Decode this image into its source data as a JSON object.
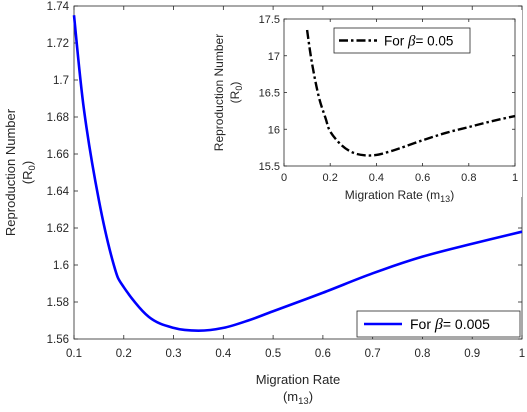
{
  "chart_data": [
    {
      "type": "line",
      "xlabel_line1": "Migration Rate",
      "xlabel_line2": "(m",
      "xlabel_sub": "13",
      "xlabel_close": ")",
      "ylabel_line1": "Reproduction Number",
      "ylabel_line2": "(R",
      "ylabel_sub": "0",
      "ylabel_close": ")",
      "xlim": [
        0.1,
        1.0
      ],
      "ylim": [
        1.56,
        1.74
      ],
      "xticks": [
        "0.1",
        "0.2",
        "0.3",
        "0.4",
        "0.5",
        "0.6",
        "0.7",
        "0.8",
        "0.9",
        "1"
      ],
      "yticks": [
        "1.56",
        "1.58",
        "1.6",
        "1.62",
        "1.64",
        "1.66",
        "1.68",
        "1.7",
        "1.72",
        "1.74"
      ],
      "grid": false,
      "legend_position": "bottom-right",
      "series": [
        {
          "name_prefix": "For ",
          "name_symbol": "β",
          "name_suffix": "= 0.005",
          "color": "#0000ff",
          "style": "solid",
          "x": [
            0.1,
            0.12,
            0.15,
            0.18,
            0.2,
            0.25,
            0.3,
            0.35,
            0.4,
            0.45,
            0.5,
            0.6,
            0.7,
            0.8,
            0.9,
            1.0
          ],
          "y": [
            1.735,
            1.684,
            1.635,
            1.6,
            1.588,
            1.572,
            1.566,
            1.5645,
            1.566,
            1.57,
            1.575,
            1.585,
            1.5955,
            1.6045,
            1.6115,
            1.618
          ]
        }
      ]
    },
    {
      "type": "line",
      "inset": true,
      "xlabel": "Migration Rate (m",
      "xlabel_sub": "13",
      "xlabel_close": ")",
      "ylabel_line1": "Reproduction Number",
      "ylabel_line2": "(R",
      "ylabel_sub": "0",
      "ylabel_close": ")",
      "xlim": [
        0,
        1.0
      ],
      "ylim": [
        15.5,
        17.5
      ],
      "xticks": [
        "0",
        "0.2",
        "0.4",
        "0.6",
        "0.8",
        "1"
      ],
      "yticks": [
        "15.5",
        "16",
        "16.5",
        "17",
        "17.5"
      ],
      "grid": false,
      "legend_position": "top-right",
      "series": [
        {
          "name_prefix": "For ",
          "name_symbol": "β",
          "name_suffix": "= 0.05",
          "color": "#000000",
          "style": "dashdot",
          "x": [
            0.1,
            0.12,
            0.15,
            0.18,
            0.2,
            0.25,
            0.3,
            0.35,
            0.4,
            0.45,
            0.5,
            0.6,
            0.7,
            0.8,
            0.9,
            1.0
          ],
          "y": [
            17.35,
            16.92,
            16.45,
            16.15,
            15.97,
            15.78,
            15.68,
            15.645,
            15.65,
            15.69,
            15.74,
            15.85,
            15.95,
            16.03,
            16.11,
            16.18
          ]
        }
      ]
    }
  ]
}
